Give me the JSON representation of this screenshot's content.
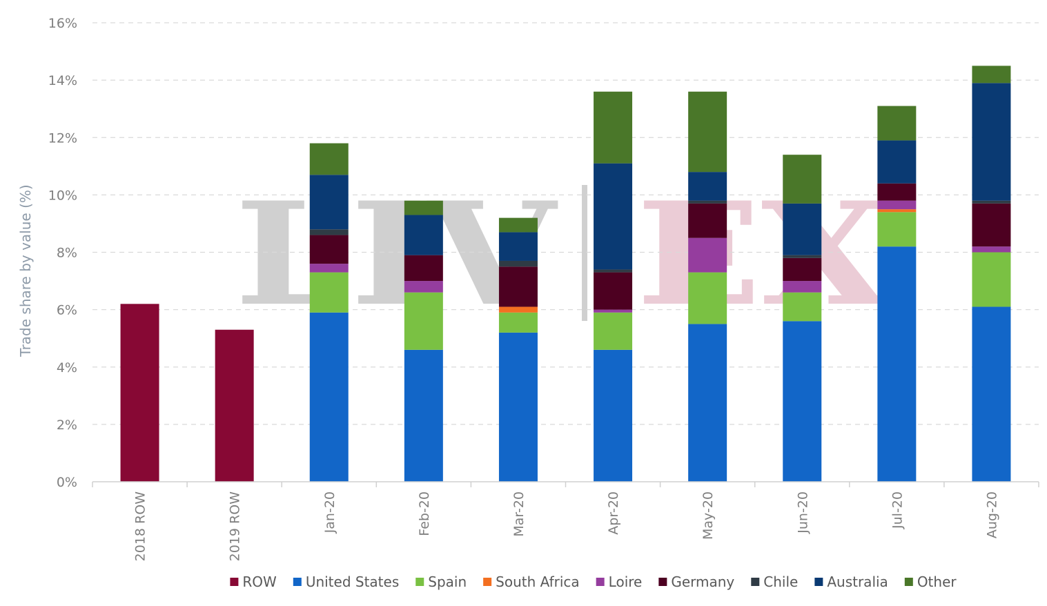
{
  "watermark": {
    "left_text": "LIV",
    "right_text": "EX",
    "left_color": "#c8c8c8",
    "right_color": "#e8c4cf"
  },
  "chart_data": {
    "type": "bar",
    "stacked": true,
    "title": "",
    "xlabel": "",
    "ylabel": "Trade share by value (%)",
    "ylim": [
      0,
      16
    ],
    "yticks": [
      "0%",
      "2%",
      "4%",
      "6%",
      "8%",
      "10%",
      "12%",
      "14%",
      "16%"
    ],
    "grid": true,
    "legend_position": "bottom",
    "categories": [
      "2018 ROW",
      "2019 ROW",
      "Jan-20",
      "Feb-20",
      "Mar-20",
      "Apr-20",
      "May-20",
      "Jun-20",
      "Jul-20",
      "Aug-20"
    ],
    "series": [
      {
        "name": "ROW",
        "color": "#870834",
        "values": [
          6.2,
          5.3,
          0,
          0,
          0,
          0,
          0,
          0,
          0,
          0
        ]
      },
      {
        "name": "United States",
        "color": "#1266c8",
        "values": [
          0,
          0,
          5.9,
          4.6,
          5.2,
          4.6,
          5.5,
          5.6,
          8.2,
          6.1
        ]
      },
      {
        "name": "Spain",
        "color": "#7ac143",
        "values": [
          0,
          0,
          1.4,
          2.0,
          0.7,
          1.3,
          1.8,
          1.0,
          1.2,
          1.9
        ]
      },
      {
        "name": "South Africa",
        "color": "#f36f21",
        "values": [
          0,
          0,
          0,
          0,
          0.2,
          0,
          0,
          0,
          0.1,
          0
        ]
      },
      {
        "name": "Loire",
        "color": "#953d9e",
        "values": [
          0,
          0,
          0.3,
          0.4,
          0,
          0.1,
          1.2,
          0.4,
          0.3,
          0.2
        ]
      },
      {
        "name": "Germany",
        "color": "#4d0021",
        "values": [
          0,
          0,
          1.0,
          0.9,
          1.4,
          1.3,
          1.2,
          0.8,
          0.6,
          1.5
        ]
      },
      {
        "name": "Chile",
        "color": "#2f3b45",
        "values": [
          0,
          0,
          0.2,
          0,
          0.2,
          0.1,
          0.1,
          0.1,
          0,
          0.1
        ]
      },
      {
        "name": "Australia",
        "color": "#0a3a73",
        "values": [
          0,
          0,
          1.9,
          1.4,
          1.0,
          3.7,
          1.0,
          1.8,
          1.5,
          4.1
        ]
      },
      {
        "name": "Other",
        "color": "#4a7729",
        "values": [
          0,
          0,
          1.1,
          0.5,
          0.5,
          2.5,
          2.8,
          1.7,
          1.2,
          0.6
        ]
      }
    ]
  }
}
